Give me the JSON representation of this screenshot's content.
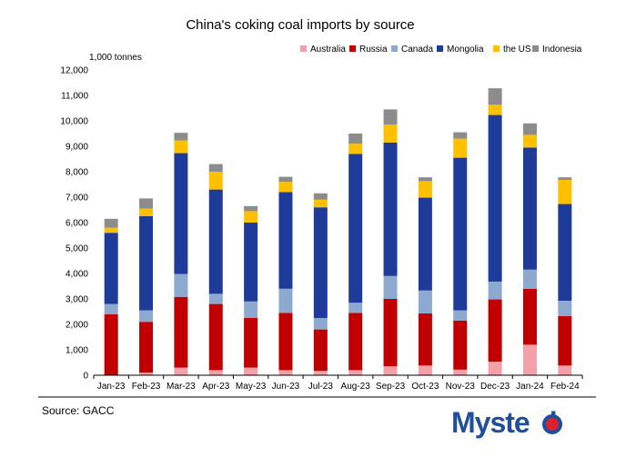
{
  "chart_data": {
    "type": "bar",
    "stacked": true,
    "title": "China's coking coal imports by source",
    "ylabel": "1,000 tonnes",
    "ylim": [
      0,
      12000
    ],
    "yticks": [
      "0",
      "1,000",
      "2,000",
      "3,000",
      "4,000",
      "5,000",
      "6,000",
      "7,000",
      "8,000",
      "9,000",
      "10,000",
      "11,000",
      "12,000"
    ],
    "categories": [
      "Jan-23",
      "Feb-23",
      "Mar-23",
      "Apr-23",
      "May-23",
      "Jun-23",
      "Jul-23",
      "Aug-23",
      "Sep-23",
      "Oct-23",
      "Nov-23",
      "Dec-23",
      "Jan-24",
      "Feb-24"
    ],
    "legend_position": "top-right",
    "series": [
      {
        "name": "Australia",
        "color": "#f4a0a8",
        "values": [
          0,
          100,
          300,
          200,
          300,
          200,
          170,
          200,
          350,
          380,
          220,
          530,
          1200,
          380
        ]
      },
      {
        "name": "Russia",
        "color": "#c00000",
        "values": [
          2400,
          2000,
          2780,
          2600,
          1950,
          2250,
          1630,
          2250,
          2650,
          2050,
          1930,
          2450,
          2200,
          1950
        ]
      },
      {
        "name": "Canada",
        "color": "#8ea9d0",
        "values": [
          400,
          450,
          900,
          400,
          650,
          950,
          450,
          400,
          900,
          900,
          400,
          700,
          750,
          600
        ]
      },
      {
        "name": "Mongolia",
        "color": "#1f3b99",
        "values": [
          2800,
          3700,
          4750,
          4100,
          3100,
          3800,
          4350,
          5850,
          5250,
          3650,
          6000,
          6550,
          4800,
          3800
        ]
      },
      {
        "name": "the US",
        "color": "#ffc000",
        "values": [
          200,
          300,
          500,
          700,
          450,
          400,
          300,
          400,
          700,
          650,
          750,
          400,
          500,
          950
        ]
      },
      {
        "name": "Indonesia",
        "color": "#8c8c8c",
        "values": [
          350,
          400,
          300,
          300,
          200,
          200,
          250,
          400,
          600,
          150,
          250,
          650,
          450,
          100
        ]
      }
    ]
  },
  "footer": {
    "source": "Source: GACC",
    "logo_text": "Myste",
    "logo_suffix": "l"
  }
}
